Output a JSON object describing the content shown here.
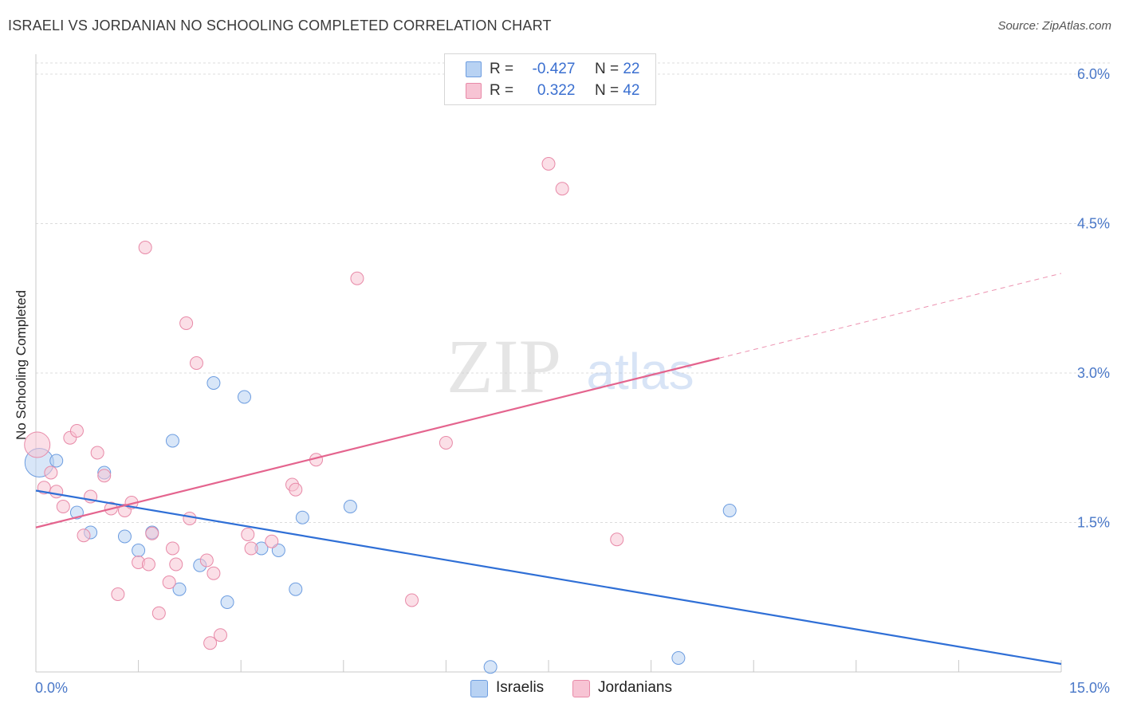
{
  "title": "ISRAELI VS JORDANIAN NO SCHOOLING COMPLETED CORRELATION CHART",
  "source": "Source: ZipAtlas.com",
  "watermark": {
    "zip": "ZIP",
    "atlas": "atlas"
  },
  "stats": [
    {
      "r_label": "R =",
      "r_value": "-0.427",
      "n_label": "N =",
      "n_value": "22",
      "color": "#a9c8f0",
      "border": "#6d9de0"
    },
    {
      "r_label": "R =",
      "r_value": "0.322",
      "n_label": "N =",
      "n_value": "42",
      "color": "#f7bfd1",
      "border": "#e88aa8"
    }
  ],
  "legend": [
    {
      "label": "Israelis",
      "color": "#a9c8f0",
      "border": "#6d9de0"
    },
    {
      "label": "Jordanians",
      "color": "#f7bfd1",
      "border": "#e88aa8"
    }
  ],
  "chart_data": {
    "type": "scatter",
    "title": "ISRAELI VS JORDANIAN NO SCHOOLING COMPLETED CORRELATION CHART",
    "xlabel": "",
    "ylabel": "No Schooling Completed",
    "xlim": [
      0,
      15
    ],
    "ylim": [
      0,
      6.2
    ],
    "x_tick_labels": [
      "0.0%",
      "15.0%"
    ],
    "y_ticks": [
      1.5,
      3.0,
      4.5,
      6.0
    ],
    "y_tick_labels": [
      "1.5%",
      "3.0%",
      "4.5%",
      "6.0%"
    ],
    "grid": true,
    "legend_position": "bottom-center",
    "series": [
      {
        "name": "Israelis",
        "color": "#6d9de0",
        "fill": "#b8d2f3",
        "trend_color": "#2f6fd6",
        "points": [
          [
            0.05,
            2.1
          ],
          [
            0.3,
            2.12
          ],
          [
            0.6,
            1.6
          ],
          [
            0.8,
            1.4
          ],
          [
            1.0,
            2.0
          ],
          [
            1.3,
            1.36
          ],
          [
            1.5,
            1.22
          ],
          [
            1.7,
            1.4
          ],
          [
            2.0,
            2.32
          ],
          [
            2.1,
            0.83
          ],
          [
            2.4,
            1.07
          ],
          [
            2.6,
            2.9
          ],
          [
            2.8,
            0.7
          ],
          [
            3.05,
            2.76
          ],
          [
            3.3,
            1.24
          ],
          [
            3.55,
            1.22
          ],
          [
            3.8,
            0.83
          ],
          [
            3.9,
            1.55
          ],
          [
            4.6,
            1.66
          ],
          [
            6.65,
            0.05
          ],
          [
            9.4,
            0.14
          ],
          [
            10.15,
            1.62
          ]
        ],
        "trend": {
          "x": [
            0,
            15
          ],
          "y": [
            1.82,
            0.08
          ]
        }
      },
      {
        "name": "Jordanians",
        "color": "#e88aa8",
        "fill": "#f7c4d4",
        "trend_color": "#e4648e",
        "points": [
          [
            0.02,
            2.28
          ],
          [
            0.12,
            1.85
          ],
          [
            0.22,
            2.0
          ],
          [
            0.3,
            1.81
          ],
          [
            0.4,
            1.66
          ],
          [
            0.5,
            2.35
          ],
          [
            0.6,
            2.42
          ],
          [
            0.7,
            1.37
          ],
          [
            0.8,
            1.76
          ],
          [
            0.9,
            2.2
          ],
          [
            1.0,
            1.97
          ],
          [
            1.1,
            1.64
          ],
          [
            1.2,
            0.78
          ],
          [
            1.3,
            1.62
          ],
          [
            1.4,
            1.7
          ],
          [
            1.5,
            1.1
          ],
          [
            1.6,
            4.26
          ],
          [
            1.65,
            1.08
          ],
          [
            1.7,
            1.39
          ],
          [
            1.8,
            0.59
          ],
          [
            1.95,
            0.9
          ],
          [
            2.0,
            1.24
          ],
          [
            2.05,
            1.08
          ],
          [
            2.2,
            3.5
          ],
          [
            2.25,
            1.54
          ],
          [
            2.35,
            3.1
          ],
          [
            2.5,
            1.12
          ],
          [
            2.55,
            0.29
          ],
          [
            2.6,
            0.99
          ],
          [
            2.7,
            0.37
          ],
          [
            3.1,
            1.38
          ],
          [
            3.15,
            1.24
          ],
          [
            3.45,
            1.31
          ],
          [
            3.75,
            1.88
          ],
          [
            3.8,
            1.83
          ],
          [
            4.1,
            2.13
          ],
          [
            4.7,
            3.95
          ],
          [
            5.5,
            0.72
          ],
          [
            6.0,
            2.3
          ],
          [
            7.5,
            5.1
          ],
          [
            7.7,
            4.85
          ],
          [
            8.5,
            1.33
          ]
        ],
        "trend": {
          "x": [
            0,
            10
          ],
          "y": [
            1.45,
            3.15
          ]
        },
        "trend_extension": {
          "x": [
            10,
            15
          ],
          "y": [
            3.15,
            4.0
          ]
        }
      }
    ]
  }
}
